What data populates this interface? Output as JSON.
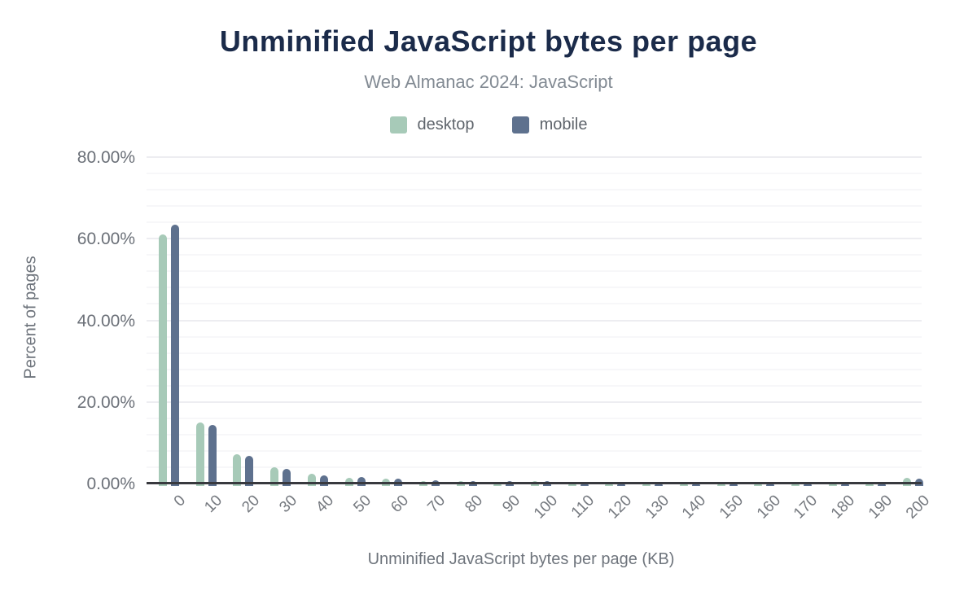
{
  "chart": {
    "title": "Unminified JavaScript bytes per page",
    "subtitle": "Web Almanac 2024: JavaScript",
    "x_axis_title": "Unminified JavaScript bytes per page (KB)",
    "y_axis_title": "Percent of pages"
  },
  "colors": {
    "title": "#1b2b4a",
    "subtitle": "#828a93",
    "desktop": "#a7cab8",
    "mobile": "#5e718e",
    "axis_line": "#38393e",
    "tick_text": "#6b7078"
  },
  "chart_data": {
    "type": "bar",
    "title": "Unminified JavaScript bytes per page",
    "subtitle": "Web Almanac 2024: JavaScript",
    "xlabel": "Unminified JavaScript bytes per page (KB)",
    "ylabel": "Percent of pages",
    "categories": [
      "0",
      "10",
      "20",
      "30",
      "40",
      "50",
      "60",
      "70",
      "80",
      "90",
      "100",
      "110",
      "120",
      "130",
      "140",
      "150",
      "160",
      "170",
      "180",
      "190",
      "200"
    ],
    "series": [
      {
        "name": "desktop",
        "color": "#a7cab8",
        "values": [
          61.0,
          14.9,
          7.2,
          3.9,
          2.3,
          1.4,
          1.1,
          0.6,
          0.5,
          0.4,
          0.5,
          0.25,
          0.2,
          0.2,
          0.15,
          0.15,
          0.15,
          0.1,
          0.1,
          0.2,
          1.4
        ]
      },
      {
        "name": "mobile",
        "color": "#5e718e",
        "values": [
          63.5,
          14.3,
          6.7,
          3.5,
          1.9,
          1.6,
          1.2,
          0.8,
          0.6,
          0.5,
          0.6,
          0.3,
          0.25,
          0.2,
          0.2,
          0.2,
          0.15,
          0.15,
          0.15,
          0.2,
          1.1
        ]
      }
    ],
    "ylim": [
      0,
      80
    ],
    "y_ticks": [
      {
        "value": 0,
        "label": "0.00%"
      },
      {
        "value": 20,
        "label": "20.00%"
      },
      {
        "value": 40,
        "label": "40.00%"
      },
      {
        "value": 60,
        "label": "60.00%"
      },
      {
        "value": 80,
        "label": "80.00%"
      }
    ],
    "minor_grid_step_percent": 4,
    "grid": true,
    "legend_position": "top",
    "x_labels_rotation_deg": -45
  }
}
